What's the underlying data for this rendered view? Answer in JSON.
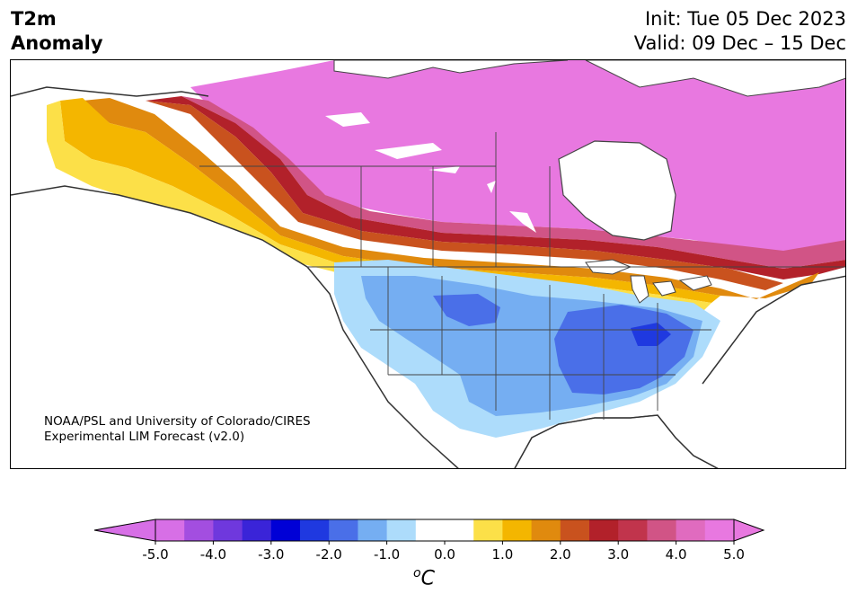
{
  "header": {
    "title_line1": "T2m",
    "title_line2": "Anomaly",
    "init": "Init: Tue 05 Dec 2023",
    "valid": "Valid: 09 Dec – 15 Dec"
  },
  "credit": {
    "line1": "NOAA/PSL and University of Colorado/CIRES",
    "line2": "Experimental LIM Forecast (v2.0)"
  },
  "colorbar": {
    "colors": [
      "#d76fe6",
      "#a34ee0",
      "#6f38dd",
      "#3a24d8",
      "#0000d6",
      "#1f39e0",
      "#4a6fe8",
      "#75aef2",
      "#addcfb",
      "#ffffff",
      "#ffffff",
      "#fce048",
      "#f4b600",
      "#e08a0e",
      "#c9521e",
      "#b2212a",
      "#c1344c",
      "#d15486",
      "#e06bbf",
      "#e878e0"
    ],
    "ticks": [
      "-5.0",
      "-4.0",
      "-3.0",
      "-2.0",
      "-1.0",
      "0.0",
      "1.0",
      "2.0",
      "3.0",
      "4.0",
      "5.0"
    ],
    "unit": "C",
    "unit_sup": "o"
  },
  "legend_colors": {
    "magenta": "#e878e0",
    "dark_red": "#b2212a",
    "orange": "#e08a0e",
    "yellow": "#fce048",
    "light_blue": "#addcfb",
    "mid_blue": "#75aef2",
    "blue": "#4a6fe8",
    "deep_blue": "#1f39e0"
  }
}
